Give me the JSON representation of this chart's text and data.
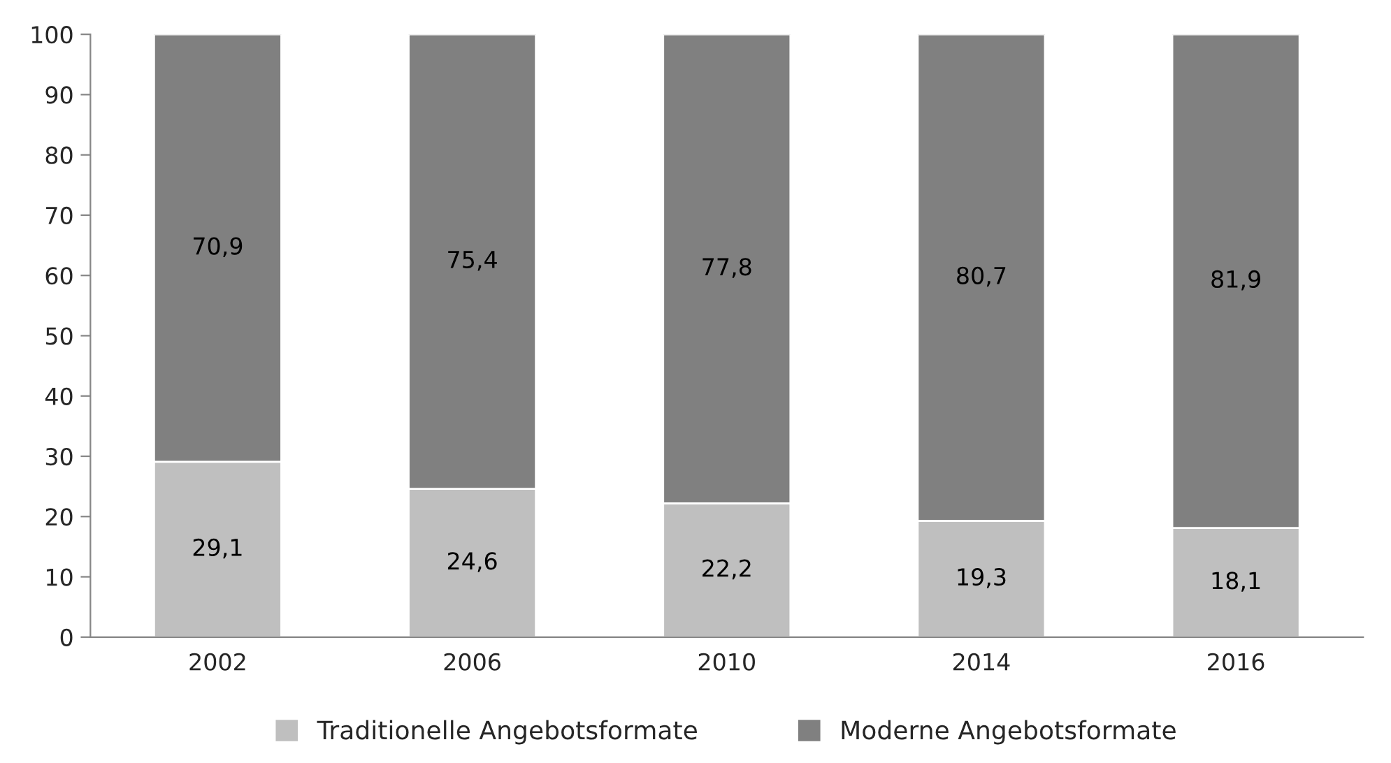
{
  "chart_data": {
    "type": "bar",
    "stacked": true,
    "categories": [
      "2002",
      "2006",
      "2010",
      "2014",
      "2016"
    ],
    "series": [
      {
        "name": "Traditionelle Angebotsformate",
        "color": "#bfbfbf",
        "values": [
          29.1,
          24.6,
          22.2,
          19.3,
          18.1
        ],
        "value_labels": [
          "29,1",
          "24,6",
          "22,2",
          "19,3",
          "18,1"
        ]
      },
      {
        "name": "Moderne Angebotsformate",
        "color": "#808080",
        "values": [
          70.9,
          75.4,
          77.8,
          80.7,
          81.9
        ],
        "value_labels": [
          "70,9",
          "75,4",
          "77,8",
          "80,7",
          "81,9"
        ]
      }
    ],
    "ylim": [
      0,
      100
    ],
    "yticks": [
      0,
      10,
      20,
      30,
      40,
      50,
      60,
      70,
      80,
      90,
      100
    ],
    "grid": false,
    "legend": "bottom"
  }
}
